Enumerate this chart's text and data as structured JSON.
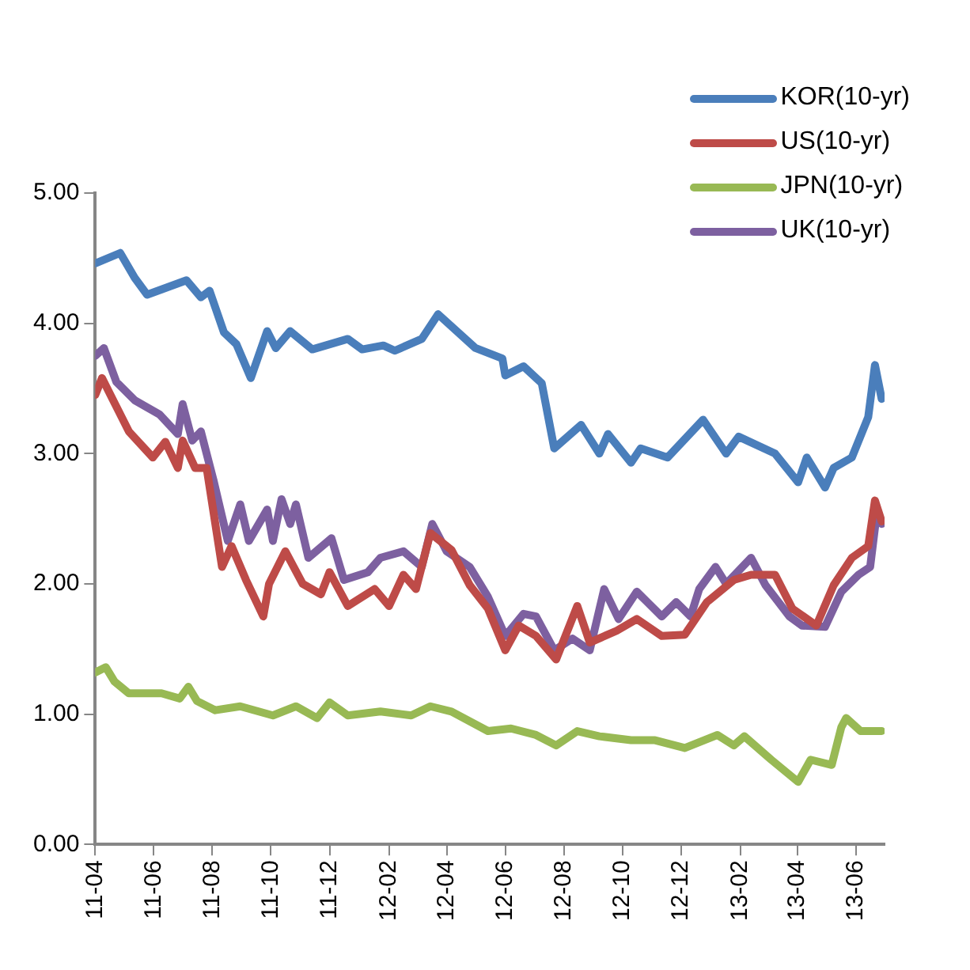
{
  "chart_data": {
    "type": "line",
    "legend": "top right",
    "grid": false,
    "marker": "none",
    "line_style": "solid",
    "xlim": [
      "2011-04-01",
      "2013-07-01"
    ],
    "ylim": [
      0,
      5
    ],
    "xticks": [
      {
        "value": "2011-04-01",
        "label": "11-04"
      },
      {
        "value": "2011-06-01",
        "label": "11-06"
      },
      {
        "value": "2011-08-01",
        "label": "11-08"
      },
      {
        "value": "2011-10-01",
        "label": "11-10"
      },
      {
        "value": "2011-12-01",
        "label": "11-12"
      },
      {
        "value": "2012-02-01",
        "label": "12-02"
      },
      {
        "value": "2012-04-01",
        "label": "12-04"
      },
      {
        "value": "2012-06-01",
        "label": "12-06"
      },
      {
        "value": "2012-08-01",
        "label": "12-08"
      },
      {
        "value": "2012-10-01",
        "label": "12-10"
      },
      {
        "value": "2012-12-01",
        "label": "12-12"
      },
      {
        "value": "2013-02-01",
        "label": "13-02"
      },
      {
        "value": "2013-04-01",
        "label": "13-04"
      },
      {
        "value": "2013-06-01",
        "label": "13-06"
      }
    ],
    "yticks": [
      {
        "value": 0,
        "label": "0.00"
      },
      {
        "value": 1,
        "label": "1.00"
      },
      {
        "value": 2,
        "label": "2.00"
      },
      {
        "value": 3,
        "label": "3.00"
      },
      {
        "value": 4,
        "label": "4.00"
      },
      {
        "value": 5,
        "label": "5.00"
      }
    ],
    "series": [
      {
        "name": "KOR(10-yr)",
        "color": "#4a7ebb",
        "x": [
          "2011-04-01",
          "2011-04-27",
          "2011-05-12",
          "2011-05-25",
          "2011-07-05",
          "2011-07-20",
          "2011-07-29",
          "2011-08-13",
          "2011-08-26",
          "2011-09-10",
          "2011-09-27",
          "2011-10-06",
          "2011-10-21",
          "2011-11-13",
          "2011-12-20",
          "2012-01-04",
          "2012-01-26",
          "2012-02-07",
          "2012-03-06",
          "2012-03-23",
          "2012-05-01",
          "2012-05-29",
          "2012-06-01",
          "2012-06-20",
          "2012-07-09",
          "2012-07-22",
          "2012-08-19",
          "2012-09-07",
          "2012-09-16",
          "2012-10-10",
          "2012-10-20",
          "2012-11-17",
          "2012-12-24",
          "2013-01-17",
          "2013-01-30",
          "2013-03-09",
          "2013-04-02",
          "2013-04-11",
          "2013-04-30",
          "2013-05-09",
          "2013-05-28",
          "2013-06-14",
          "2013-06-21",
          "2013-06-28"
        ],
        "values": [
          4.46,
          4.54,
          4.35,
          4.22,
          4.33,
          4.2,
          4.25,
          3.93,
          3.84,
          3.58,
          3.94,
          3.81,
          3.94,
          3.8,
          3.88,
          3.8,
          3.83,
          3.79,
          3.88,
          4.07,
          3.81,
          3.73,
          3.6,
          3.67,
          3.54,
          3.04,
          3.22,
          3.0,
          3.15,
          2.93,
          3.04,
          2.97,
          3.26,
          3.0,
          3.13,
          3.0,
          2.78,
          2.97,
          2.74,
          2.89,
          2.97,
          3.28,
          3.68,
          3.42
        ]
      },
      {
        "name": "US(10-yr)",
        "color": "#be4b48",
        "x": [
          "2011-04-01",
          "2011-04-08",
          "2011-05-06",
          "2011-05-31",
          "2011-06-13",
          "2011-06-26",
          "2011-07-01",
          "2011-07-14",
          "2011-07-26",
          "2011-08-11",
          "2011-08-21",
          "2011-09-05",
          "2011-09-23",
          "2011-09-29",
          "2011-10-16",
          "2011-11-03",
          "2011-11-22",
          "2011-12-01",
          "2011-12-20",
          "2012-01-17",
          "2012-02-01",
          "2012-02-16",
          "2012-02-29",
          "2012-03-15",
          "2012-04-06",
          "2012-04-25",
          "2012-05-14",
          "2012-06-01",
          "2012-06-15",
          "2012-07-03",
          "2012-07-24",
          "2012-08-15",
          "2012-08-28",
          "2012-09-25",
          "2012-10-16",
          "2012-11-11",
          "2012-12-05",
          "2012-12-28",
          "2013-01-25",
          "2013-02-12",
          "2013-03-09",
          "2013-03-27",
          "2013-04-21",
          "2013-05-09",
          "2013-05-28",
          "2013-06-14",
          "2013-06-21",
          "2013-06-28"
        ],
        "values": [
          3.45,
          3.58,
          3.17,
          2.97,
          3.09,
          2.89,
          3.1,
          2.89,
          2.89,
          2.13,
          2.29,
          2.03,
          1.75,
          2.0,
          2.25,
          2.0,
          1.92,
          2.09,
          1.83,
          1.96,
          1.83,
          2.07,
          1.96,
          2.39,
          2.26,
          1.99,
          1.81,
          1.49,
          1.68,
          1.6,
          1.42,
          1.83,
          1.55,
          1.64,
          1.73,
          1.6,
          1.61,
          1.86,
          2.03,
          2.07,
          2.07,
          1.81,
          1.68,
          1.99,
          2.2,
          2.29,
          2.64,
          2.48
        ]
      },
      {
        "name": "JPN(10-yr)",
        "color": "#98b954",
        "x": [
          "2011-04-01",
          "2011-04-12",
          "2011-04-21",
          "2011-05-06",
          "2011-06-09",
          "2011-06-28",
          "2011-07-07",
          "2011-07-16",
          "2011-08-04",
          "2011-08-30",
          "2011-10-03",
          "2011-10-27",
          "2011-11-18",
          "2011-12-01",
          "2011-12-20",
          "2012-01-23",
          "2012-02-24",
          "2012-03-15",
          "2012-04-06",
          "2012-05-14",
          "2012-06-07",
          "2012-07-03",
          "2012-07-24",
          "2012-08-15",
          "2012-09-07",
          "2012-10-10",
          "2012-11-04",
          "2012-12-05",
          "2013-01-08",
          "2013-01-25",
          "2013-02-05",
          "2013-03-05",
          "2013-04-02",
          "2013-04-15",
          "2013-05-07",
          "2013-05-17",
          "2013-05-22",
          "2013-06-06",
          "2013-06-28"
        ],
        "values": [
          1.32,
          1.36,
          1.25,
          1.16,
          1.16,
          1.12,
          1.21,
          1.1,
          1.03,
          1.06,
          0.99,
          1.06,
          0.97,
          1.09,
          0.99,
          1.02,
          0.99,
          1.06,
          1.02,
          0.87,
          0.89,
          0.84,
          0.76,
          0.87,
          0.83,
          0.8,
          0.8,
          0.74,
          0.84,
          0.76,
          0.83,
          0.65,
          0.48,
          0.65,
          0.61,
          0.9,
          0.97,
          0.87,
          0.87
        ]
      },
      {
        "name": "UK(10-yr)",
        "color": "#7d60a0",
        "x": [
          "2011-04-01",
          "2011-04-10",
          "2011-04-23",
          "2011-05-12",
          "2011-06-07",
          "2011-06-26",
          "2011-07-01",
          "2011-07-11",
          "2011-07-20",
          "2011-08-02",
          "2011-08-17",
          "2011-08-30",
          "2011-09-08",
          "2011-09-27",
          "2011-10-03",
          "2011-10-12",
          "2011-10-21",
          "2011-10-27",
          "2011-11-09",
          "2011-12-03",
          "2011-12-16",
          "2012-01-10",
          "2012-01-23",
          "2012-02-16",
          "2012-03-06",
          "2012-03-17",
          "2012-04-01",
          "2012-04-25",
          "2012-05-14",
          "2012-06-01",
          "2012-06-20",
          "2012-07-03",
          "2012-07-22",
          "2012-08-10",
          "2012-08-28",
          "2012-09-12",
          "2012-09-27",
          "2012-10-16",
          "2012-11-11",
          "2012-11-26",
          "2012-12-11",
          "2012-12-20",
          "2013-01-06",
          "2013-01-17",
          "2013-02-12",
          "2013-02-27",
          "2013-03-24",
          "2013-04-06",
          "2013-04-30",
          "2013-05-17",
          "2013-06-04",
          "2013-06-16",
          "2013-06-23",
          "2013-06-28"
        ],
        "values": [
          3.75,
          3.81,
          3.55,
          3.41,
          3.3,
          3.15,
          3.38,
          3.1,
          3.17,
          2.8,
          2.33,
          2.61,
          2.33,
          2.57,
          2.33,
          2.65,
          2.46,
          2.61,
          2.2,
          2.35,
          2.03,
          2.09,
          2.2,
          2.25,
          2.13,
          2.46,
          2.25,
          2.13,
          1.9,
          1.6,
          1.77,
          1.75,
          1.49,
          1.58,
          1.49,
          1.96,
          1.73,
          1.94,
          1.75,
          1.86,
          1.75,
          1.96,
          2.13,
          2.0,
          2.2,
          1.99,
          1.75,
          1.68,
          1.67,
          1.94,
          2.07,
          2.13,
          2.55,
          2.46
        ]
      }
    ]
  }
}
